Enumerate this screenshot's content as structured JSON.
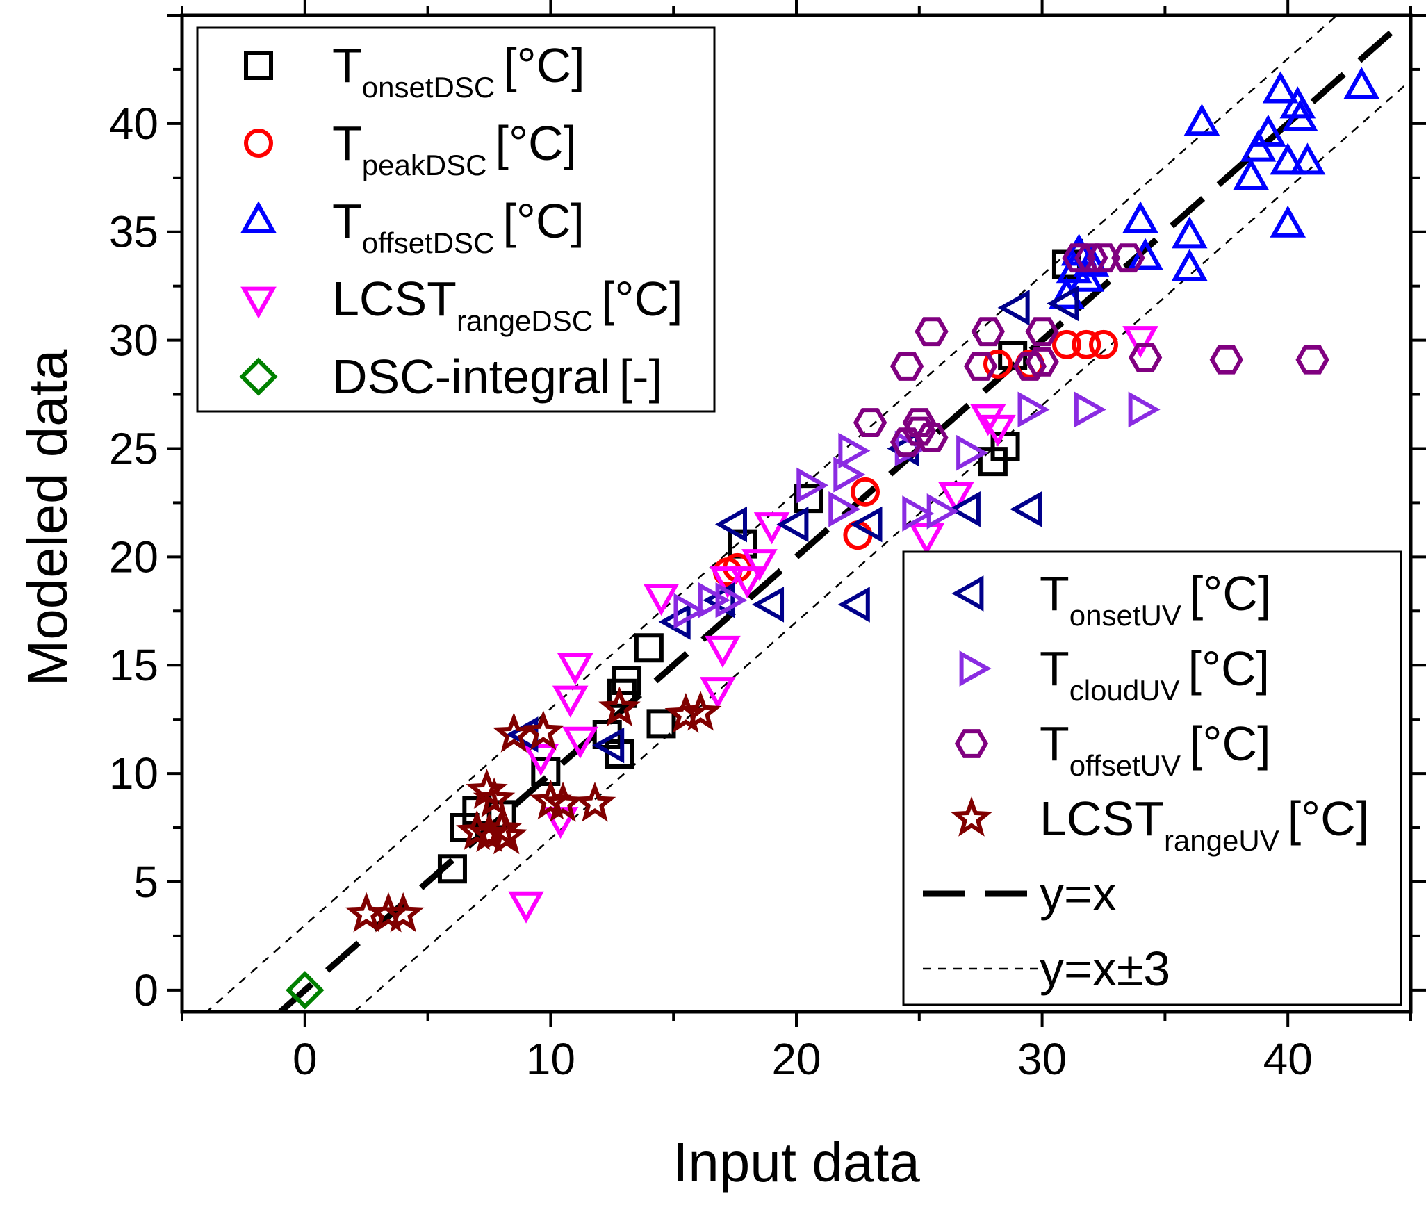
{
  "chart_data": {
    "type": "scatter",
    "xlabel": "Input data",
    "ylabel": "Modeled data",
    "xlim": [
      -5,
      45
    ],
    "ylim": [
      -1,
      45
    ],
    "xticks": [
      0,
      10,
      20,
      30,
      40
    ],
    "yticks": [
      0,
      5,
      10,
      15,
      20,
      25,
      30,
      35,
      40
    ],
    "legend_top_left": [
      {
        "series": "T_onsetDSC",
        "base": "T",
        "sub": "onsetDSC",
        "unit": "[°C]"
      },
      {
        "series": "T_peakDSC",
        "base": "T",
        "sub": "peakDSC",
        "unit": "[°C]"
      },
      {
        "series": "T_offsetDSC",
        "base": "T",
        "sub": "offsetDSC",
        "unit": "[°C]"
      },
      {
        "series": "LCST_rangeDSC",
        "base": "LCST",
        "sub": "rangeDSC",
        "unit": "[°C]"
      },
      {
        "series": "DSC-integral",
        "base": "DSC-integral",
        "sub": "",
        "unit": "[-]"
      }
    ],
    "legend_bottom_right": [
      {
        "series": "T_onsetUV",
        "base": "T",
        "sub": "onsetUV",
        "unit": "[°C]"
      },
      {
        "series": "T_cloudUV",
        "base": "T",
        "sub": "cloudUV",
        "unit": "[°C]"
      },
      {
        "series": "T_offsetUV",
        "base": "T",
        "sub": "offsetUV",
        "unit": "[°C]"
      },
      {
        "series": "LCST_rangeUV",
        "base": "LCST",
        "sub": "rangeUV",
        "unit": "[°C]"
      },
      {
        "series": "y=x",
        "base": "y=x",
        "sub": "",
        "unit": ""
      },
      {
        "series": "y=x±3",
        "base": "y=x±3",
        "sub": "",
        "unit": ""
      }
    ],
    "series": [
      {
        "name": "T_onsetDSC",
        "marker": "square",
        "color": "#000000",
        "points": [
          [
            6.0,
            5.6
          ],
          [
            6.5,
            7.5
          ],
          [
            7.0,
            8.3
          ],
          [
            8.0,
            8.1
          ],
          [
            9.8,
            10.1
          ],
          [
            12.3,
            11.8
          ],
          [
            12.8,
            10.9
          ],
          [
            12.9,
            13.7
          ],
          [
            13.1,
            14.3
          ],
          [
            14.0,
            15.8
          ],
          [
            14.5,
            12.3
          ],
          [
            17.8,
            20.6
          ],
          [
            20.5,
            22.7
          ],
          [
            28.0,
            24.4
          ],
          [
            28.5,
            25.1
          ],
          [
            28.8,
            29.3
          ],
          [
            31.0,
            33.5
          ]
        ]
      },
      {
        "name": "T_peakDSC",
        "marker": "circle",
        "color": "#ff0000",
        "points": [
          [
            17.2,
            19.3
          ],
          [
            17.6,
            19.5
          ],
          [
            22.5,
            21.0
          ],
          [
            22.8,
            23.0
          ],
          [
            28.2,
            28.9
          ],
          [
            29.5,
            28.9
          ],
          [
            31.0,
            29.8
          ],
          [
            31.8,
            29.8
          ],
          [
            32.5,
            29.8
          ]
        ]
      },
      {
        "name": "T_offsetDSC",
        "marker": "triangle-up",
        "color": "#0000ff",
        "points": [
          [
            31.0,
            32.0
          ],
          [
            31.3,
            33.2
          ],
          [
            31.5,
            34.0
          ],
          [
            31.8,
            32.8
          ],
          [
            32.0,
            33.5
          ],
          [
            34.0,
            35.5
          ],
          [
            34.2,
            33.8
          ],
          [
            36.0,
            34.8
          ],
          [
            36.0,
            33.3
          ],
          [
            36.5,
            40.0
          ],
          [
            38.5,
            37.5
          ],
          [
            38.8,
            38.8
          ],
          [
            39.2,
            39.5
          ],
          [
            39.7,
            41.5
          ],
          [
            40.0,
            38.2
          ],
          [
            40.0,
            35.3
          ],
          [
            40.4,
            40.8
          ],
          [
            40.5,
            40.2
          ],
          [
            40.8,
            38.2
          ],
          [
            43.0,
            41.7
          ]
        ]
      },
      {
        "name": "LCST_rangeDSC",
        "marker": "triangle-down",
        "color": "#ff00ff",
        "points": [
          [
            9.0,
            4.0
          ],
          [
            9.6,
            10.8
          ],
          [
            10.4,
            7.9
          ],
          [
            10.8,
            13.5
          ],
          [
            11.0,
            15.0
          ],
          [
            11.2,
            11.6
          ],
          [
            14.5,
            18.2
          ],
          [
            16.8,
            13.9
          ],
          [
            17.0,
            15.8
          ],
          [
            17.2,
            19.0
          ],
          [
            18.0,
            19.0
          ],
          [
            18.5,
            19.8
          ],
          [
            19.0,
            21.5
          ],
          [
            25.3,
            21.0
          ],
          [
            26.5,
            22.9
          ],
          [
            27.8,
            26.5
          ],
          [
            28.2,
            26.0
          ],
          [
            34.0,
            30.1
          ]
        ]
      },
      {
        "name": "DSC-integral",
        "marker": "diamond",
        "color": "#008000",
        "points": [
          [
            0.0,
            0.0
          ]
        ]
      },
      {
        "name": "T_onsetUV",
        "marker": "triangle-left",
        "color": "#00008b",
        "points": [
          [
            9.0,
            11.8
          ],
          [
            12.5,
            11.3
          ],
          [
            15.2,
            17.0
          ],
          [
            17.0,
            18.0
          ],
          [
            17.5,
            21.5
          ],
          [
            19.0,
            17.8
          ],
          [
            20.0,
            21.5
          ],
          [
            22.5,
            17.8
          ],
          [
            23.0,
            21.5
          ],
          [
            24.5,
            25.0
          ],
          [
            27.0,
            22.2
          ],
          [
            29.0,
            31.5
          ],
          [
            29.5,
            22.2
          ],
          [
            31.0,
            31.7
          ]
        ]
      },
      {
        "name": "T_cloudUV",
        "marker": "triangle-right",
        "color": "#8a2be2",
        "points": [
          [
            15.5,
            17.5
          ],
          [
            16.5,
            18.0
          ],
          [
            17.2,
            18.0
          ],
          [
            20.5,
            23.3
          ],
          [
            21.8,
            22.2
          ],
          [
            22.0,
            23.8
          ],
          [
            22.2,
            24.9
          ],
          [
            24.5,
            25.0
          ],
          [
            24.8,
            22.0
          ],
          [
            25.8,
            22.1
          ],
          [
            27.0,
            24.8
          ],
          [
            29.5,
            26.8
          ],
          [
            31.8,
            26.8
          ],
          [
            34.0,
            26.8
          ]
        ]
      },
      {
        "name": "T_offsetUV",
        "marker": "hexagon",
        "color": "#800080",
        "points": [
          [
            23.0,
            26.2
          ],
          [
            24.5,
            28.8
          ],
          [
            24.5,
            25.3
          ],
          [
            25.0,
            25.8
          ],
          [
            25.0,
            26.2
          ],
          [
            25.5,
            25.5
          ],
          [
            25.5,
            30.4
          ],
          [
            27.5,
            28.8
          ],
          [
            27.8,
            30.4
          ],
          [
            29.5,
            28.8
          ],
          [
            30.0,
            30.4
          ],
          [
            30.0,
            29.0
          ],
          [
            31.5,
            33.8
          ],
          [
            32.0,
            33.8
          ],
          [
            32.5,
            33.8
          ],
          [
            33.5,
            33.8
          ],
          [
            34.2,
            29.2
          ],
          [
            37.5,
            29.1
          ],
          [
            41.0,
            29.1
          ]
        ]
      },
      {
        "name": "LCST_rangeUV",
        "marker": "star",
        "color": "#800000",
        "points": [
          [
            2.5,
            3.5
          ],
          [
            3.4,
            3.5
          ],
          [
            4.0,
            3.5
          ],
          [
            7.0,
            7.3
          ],
          [
            7.4,
            9.2
          ],
          [
            7.5,
            7.2
          ],
          [
            7.7,
            8.8
          ],
          [
            8.0,
            7.4
          ],
          [
            8.2,
            7.1
          ],
          [
            8.5,
            11.8
          ],
          [
            9.7,
            11.9
          ],
          [
            10.0,
            8.7
          ],
          [
            10.5,
            8.6
          ],
          [
            11.8,
            8.6
          ],
          [
            12.8,
            13.0
          ],
          [
            15.5,
            12.7
          ],
          [
            16.1,
            12.8
          ]
        ]
      }
    ]
  }
}
